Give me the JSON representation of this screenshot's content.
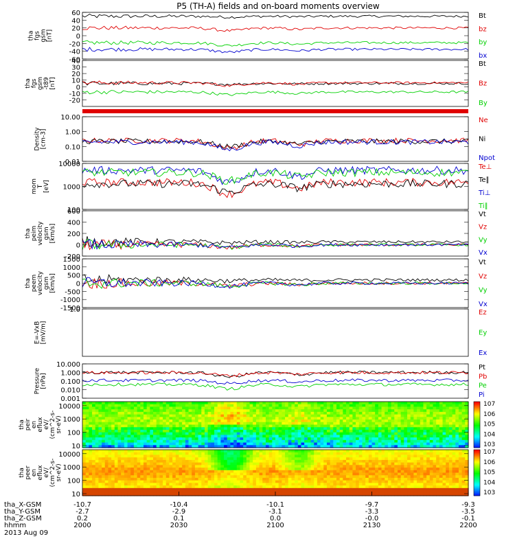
{
  "title": "P5 (TH-A) fields and on-board moments overview",
  "date": "2013 Aug 09",
  "footer": {
    "row_labels": [
      "tha_X-GSM",
      "tha_Y-GSM",
      "tha_Z-GSM",
      "hhmm"
    ],
    "columns": [
      {
        "x": "-10.7",
        "y": "-2.7",
        "z": "0.2",
        "t": "2000"
      },
      {
        "x": "-10.4",
        "y": "-2.9",
        "z": "0.1",
        "t": "2030"
      },
      {
        "x": "-10.1",
        "y": "-3.1",
        "z": "0.0",
        "t": "2100"
      },
      {
        "x": "-9.7",
        "y": "-3.3",
        "z": "-0.0",
        "t": "2130"
      },
      {
        "x": "-9.3",
        "y": "-3.5",
        "z": "-0.1",
        "t": "2200"
      }
    ]
  },
  "colors": {
    "black": "#000000",
    "red": "#e00000",
    "green": "#00d000",
    "blue": "#0000d0"
  },
  "colorbar_ticks": [
    "10^7",
    "10^6",
    "10^5",
    "10^4",
    "10^3"
  ],
  "chart_data": [
    {
      "id": "p1",
      "type": "line",
      "ylabel_lines": [
        "tha",
        "fgs",
        "gsm",
        "[nT]"
      ],
      "ylim": [
        -60,
        60
      ],
      "yticks": [
        "60",
        "40",
        "20",
        "0",
        "-20",
        "-40",
        "-60"
      ],
      "ytick_values": [
        60,
        40,
        20,
        0,
        -20,
        -40,
        -60
      ],
      "series": [
        {
          "name": "Bt",
          "color": "#000000",
          "base": 50
        },
        {
          "name": "bz",
          "color": "#e00000",
          "base": 20
        },
        {
          "name": "by",
          "color": "#00d000",
          "base": -18
        },
        {
          "name": "bx",
          "color": "#0000d0",
          "base": -35
        }
      ]
    },
    {
      "id": "p2",
      "type": "line",
      "ylabel_lines": [
        "tha",
        "fgs",
        "gsm",
        "-t89",
        "[nT]"
      ],
      "ylim": [
        -30,
        40
      ],
      "yticks": [
        "40",
        "30",
        "20",
        "10",
        "0",
        "-10",
        "-20"
      ],
      "ytick_values": [
        40,
        30,
        20,
        10,
        0,
        -10,
        -20
      ],
      "series": [
        {
          "name": "Bt",
          "color": "#000000",
          "base": 5
        },
        {
          "name": "Bz",
          "color": "#e00000",
          "base": 6
        },
        {
          "name": "By",
          "color": "#00d000",
          "base": -8
        }
      ]
    },
    {
      "id": "p3",
      "type": "line",
      "log": true,
      "ylabel_lines": [
        "Density",
        "[cm-3]"
      ],
      "ylim": [
        0.01,
        10
      ],
      "yticks": [
        "10.00",
        "1.00",
        "0.10",
        "0.01"
      ],
      "ytick_values": [
        10,
        1,
        0.1,
        0.01
      ],
      "series": [
        {
          "name": "Ne",
          "color": "#e00000",
          "base": 0.25
        },
        {
          "name": "Ni",
          "color": "#000000",
          "base": 0.22
        },
        {
          "name": "Npot",
          "color": "#0000d0",
          "base": 0.2
        }
      ]
    },
    {
      "id": "p4",
      "type": "line",
      "log": true,
      "ylabel_lines": [
        "mom",
        "T",
        "[eV]"
      ],
      "ylim": [
        100,
        10000
      ],
      "yticks": [
        "10000",
        "1000",
        "100"
      ],
      "ytick_values": [
        10000,
        1000,
        100
      ],
      "series": [
        {
          "name": "Te⊥",
          "color": "#e00000",
          "base": 1500
        },
        {
          "name": "Te∥",
          "color": "#000000",
          "base": 1300
        },
        {
          "name": "Ti⊥",
          "color": "#0000d0",
          "base": 5000
        },
        {
          "name": "Ti∥",
          "color": "#00d000",
          "base": 4000
        }
      ]
    },
    {
      "id": "p5",
      "type": "line",
      "ylabel_lines": [
        "tha",
        "peim",
        "velocity",
        "gsm",
        "[km/s]"
      ],
      "ylim": [
        -200,
        600
      ],
      "yticks": [
        "600",
        "400",
        "200",
        "0",
        "-200"
      ],
      "ytick_values": [
        600,
        400,
        200,
        0,
        -200
      ],
      "series": [
        {
          "name": "Vt",
          "color": "#000000",
          "base": 50
        },
        {
          "name": "Vz",
          "color": "#e00000",
          "base": 0
        },
        {
          "name": "Vy",
          "color": "#00d000",
          "base": 0
        },
        {
          "name": "Vx",
          "color": "#0000d0",
          "base": 0
        }
      ]
    },
    {
      "id": "p6",
      "type": "line",
      "ylabel_lines": [
        "tha",
        "peem",
        "velocity",
        "gsm",
        "[km/s]"
      ],
      "ylim": [
        -1500,
        1500
      ],
      "yticks": [
        "1500",
        "1000",
        "500",
        "0",
        "-500",
        "-1000",
        "-1500"
      ],
      "ytick_values": [
        1500,
        1000,
        500,
        0,
        -500,
        -1000,
        -1500
      ],
      "series": [
        {
          "name": "Vt",
          "color": "#000000",
          "base": 200
        },
        {
          "name": "Vz",
          "color": "#e00000",
          "base": 0
        },
        {
          "name": "Vy",
          "color": "#00d000",
          "base": 0
        },
        {
          "name": "Vx",
          "color": "#0000d0",
          "base": 0
        }
      ]
    },
    {
      "id": "p7",
      "type": "line",
      "ylabel_lines": [
        "E=-VxB",
        "[mV/m]"
      ],
      "ylim": [
        0,
        1
      ],
      "yticks": [
        "1.0"
      ],
      "ytick_values": [
        1
      ],
      "series": [
        {
          "name": "Ez",
          "color": "#e00000"
        },
        {
          "name": "Ey",
          "color": "#00d000"
        },
        {
          "name": "Ex",
          "color": "#0000d0"
        }
      ]
    },
    {
      "id": "p8",
      "type": "line",
      "log": true,
      "ylabel_lines": [
        "Pressure",
        "[nPa]"
      ],
      "ylim": [
        0.001,
        10
      ],
      "yticks": [
        "10.000",
        "1.000",
        "0.100",
        "0.010",
        "0.001"
      ],
      "ytick_values": [
        10,
        1,
        0.1,
        0.01,
        0.001
      ],
      "series": [
        {
          "name": "Pt",
          "color": "#000000",
          "base": 1.0
        },
        {
          "name": "Pb",
          "color": "#e00000",
          "base": 0.95
        },
        {
          "name": "Pe",
          "color": "#00d000",
          "base": 0.04
        },
        {
          "name": "Pi",
          "color": "#0000d0",
          "base": 0.12
        }
      ]
    },
    {
      "id": "p9",
      "type": "heatmap",
      "ylabel_lines": [
        "tha",
        "peir",
        "en",
        "eflux",
        "eV/",
        "(cm^2-s-",
        "sr-eV)"
      ],
      "yticks": [
        "10000",
        "1000",
        "100",
        "10"
      ],
      "ytick_values": [
        10000,
        1000,
        100,
        10
      ],
      "ylim": [
        7,
        20000
      ]
    },
    {
      "id": "p10",
      "type": "heatmap",
      "ylabel_lines": [
        "tha",
        "peer",
        "en",
        "eflux",
        "eV/",
        "(cm^2-s-",
        "sr-eV)"
      ],
      "yticks": [
        "10000",
        "1000",
        "100",
        "10"
      ],
      "ytick_values": [
        10000,
        1000,
        100,
        10
      ],
      "ylim": [
        7,
        20000
      ]
    }
  ]
}
